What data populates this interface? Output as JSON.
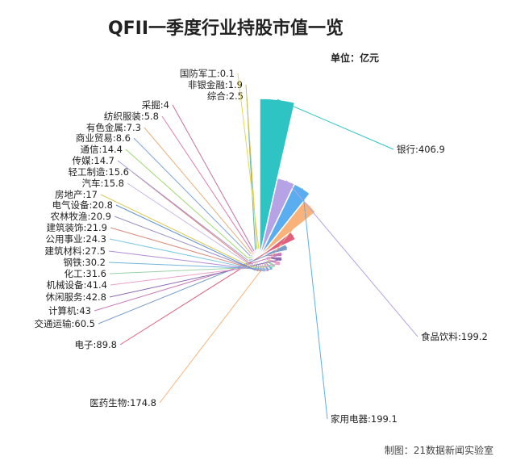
{
  "chart_data": {
    "type": "pie",
    "subtype": "nightingale-rose",
    "title": "QFII一季度行业持股市值一览",
    "unit_label": "单位：亿元",
    "credit": "制图：21数据新闻实验室",
    "slices": [
      {
        "name": "银行",
        "value": 406.9,
        "color": "#2ec4c4"
      },
      {
        "name": "食品饮料",
        "value": 199.2,
        "color": "#b6a3e6"
      },
      {
        "name": "家用电器",
        "value": 199.1,
        "color": "#5aaef0"
      },
      {
        "name": "医药生物",
        "value": 174.8,
        "color": "#f9b27a"
      },
      {
        "name": "电子",
        "value": 89.8,
        "color": "#e0607e"
      },
      {
        "name": "交通运输",
        "value": 60.5,
        "color": "#7a9ec7"
      },
      {
        "name": "计算机",
        "value": 43,
        "color": "#c77ab8"
      },
      {
        "name": "休闲服务",
        "value": 42.8,
        "color": "#8c6bb1"
      },
      {
        "name": "机械设备",
        "value": 41.4,
        "color": "#e8a2c8"
      },
      {
        "name": "化工",
        "value": 31.6,
        "color": "#9ad0a8"
      },
      {
        "name": "钢铁",
        "value": 30.2,
        "color": "#6fb6d9"
      },
      {
        "name": "建筑材料",
        "value": 27.5,
        "color": "#b38cd6"
      },
      {
        "name": "公用事业",
        "value": 24.3,
        "color": "#7ec8e3"
      },
      {
        "name": "建筑装饰",
        "value": 21.9,
        "color": "#d98c7a"
      },
      {
        "name": "农林牧渔",
        "value": 20.9,
        "color": "#9b8fc4"
      },
      {
        "name": "电气设备",
        "value": 20.8,
        "color": "#5b8fd1"
      },
      {
        "name": "房地产",
        "value": 17,
        "color": "#d8c850"
      },
      {
        "name": "汽车",
        "value": 15.8,
        "color": "#c9b8e6"
      },
      {
        "name": "轻工制造",
        "value": 15.6,
        "color": "#e07a7a"
      },
      {
        "name": "传媒",
        "value": 14.7,
        "color": "#a0a0d8"
      },
      {
        "name": "通信",
        "value": 14.4,
        "color": "#9ed96f"
      },
      {
        "name": "商业贸易",
        "value": 8.6,
        "color": "#7fa6d9"
      },
      {
        "name": "有色金属",
        "value": 7.3,
        "color": "#e6b07a"
      },
      {
        "name": "纺织服装",
        "value": 5.8,
        "color": "#e07ab0"
      },
      {
        "name": "采掘",
        "value": 4,
        "color": "#c46fa0"
      },
      {
        "name": "综合",
        "value": 2.5,
        "color": "#4fb8c4"
      },
      {
        "name": "非银金融",
        "value": 1.9,
        "color": "#d9c04a"
      },
      {
        "name": "国防军工",
        "value": 0.1,
        "color": "#e8d84a"
      }
    ]
  }
}
